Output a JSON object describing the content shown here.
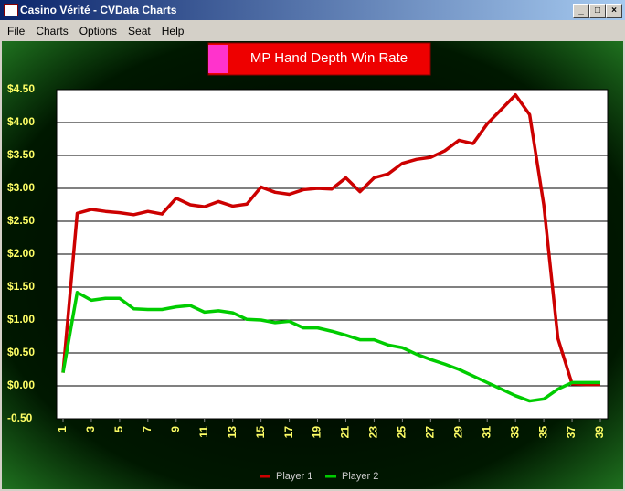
{
  "window": {
    "title": "Casino Vérité - CVData Charts",
    "menu": [
      "File",
      "Charts",
      "Options",
      "Seat",
      "Help"
    ]
  },
  "chart_data": {
    "type": "line",
    "title": "MP Hand Depth Win Rate",
    "x": [
      1,
      2,
      3,
      4,
      5,
      6,
      7,
      8,
      9,
      10,
      11,
      12,
      13,
      14,
      15,
      16,
      17,
      18,
      19,
      20,
      21,
      22,
      23,
      24,
      25,
      26,
      27,
      28,
      29,
      30,
      31,
      32,
      33,
      34,
      35,
      36,
      37,
      38,
      39
    ],
    "xlim": [
      1,
      39
    ],
    "xticks": [
      1,
      3,
      5,
      7,
      9,
      11,
      13,
      15,
      17,
      19,
      21,
      23,
      25,
      27,
      29,
      31,
      33,
      35,
      37,
      39
    ],
    "ylim": [
      -0.5,
      4.5
    ],
    "yticks": [
      {
        "value": 4.5,
        "label": "$4.50"
      },
      {
        "value": 4,
        "label": "$4.00"
      },
      {
        "value": 3.5,
        "label": "$3.50"
      },
      {
        "value": 3,
        "label": "$3.00"
      },
      {
        "value": 2.5,
        "label": "$2.50"
      },
      {
        "value": 2,
        "label": "$2.00"
      },
      {
        "value": 1.5,
        "label": "$1.50"
      },
      {
        "value": 1,
        "label": "$1.00"
      },
      {
        "value": 0.5,
        "label": "$0.50"
      },
      {
        "value": 0,
        "label": "$0.00"
      },
      {
        "value": -0.5,
        "label": "-0.50"
      }
    ],
    "grid": true,
    "legend": "bottom",
    "series": [
      {
        "name": "Player 1",
        "color": "#cc0000",
        "values": [
          0.2,
          2.62,
          2.68,
          2.65,
          2.63,
          2.6,
          2.65,
          2.61,
          2.85,
          2.75,
          2.72,
          2.8,
          2.73,
          2.76,
          3.02,
          2.94,
          2.91,
          2.98,
          3.0,
          2.99,
          3.16,
          2.95,
          3.16,
          3.22,
          3.38,
          3.44,
          3.47,
          3.57,
          3.73,
          3.68,
          3.98,
          4.2,
          4.42,
          4.12,
          2.75,
          0.72,
          0.03,
          0.02,
          0.02
        ]
      },
      {
        "name": "Player 2",
        "color": "#00cc00",
        "values": [
          0.2,
          1.42,
          1.3,
          1.33,
          1.33,
          1.17,
          1.16,
          1.16,
          1.2,
          1.22,
          1.12,
          1.14,
          1.11,
          1.01,
          1.0,
          0.96,
          0.98,
          0.88,
          0.88,
          0.83,
          0.77,
          0.7,
          0.7,
          0.62,
          0.58,
          0.48,
          0.4,
          0.33,
          0.25,
          0.15,
          0.05,
          -0.05,
          -0.15,
          -0.23,
          -0.2,
          -0.05,
          0.05,
          0.05,
          0.05
        ]
      }
    ]
  }
}
